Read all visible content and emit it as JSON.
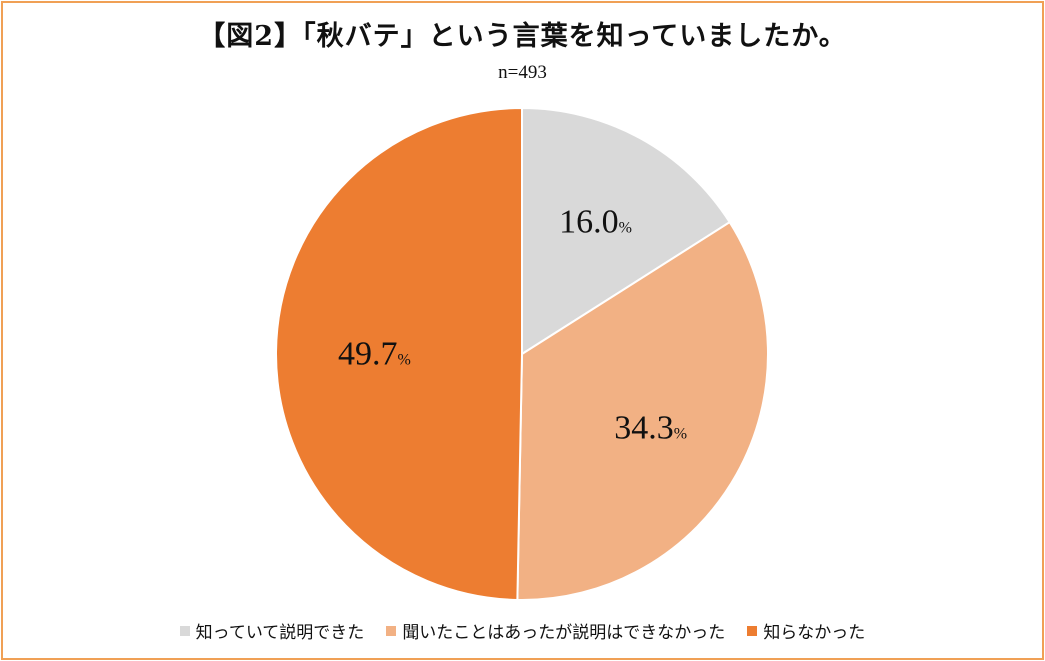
{
  "chart_data": {
    "type": "pie",
    "title": "【図2】「秋バテ」という言葉を知っていましたか。",
    "subtitle": "n=493",
    "unit_suffix": "%",
    "slices": [
      {
        "label": "知っていて説明できた",
        "value": 16.0,
        "value_text": "16.0",
        "color": "#D9D9D9"
      },
      {
        "label": "聞いたことはあったが説明はできなかった",
        "value": 34.3,
        "value_text": "34.3",
        "color": "#F2B184"
      },
      {
        "label": "知らなかった",
        "value": 49.7,
        "value_text": "49.7",
        "color": "#ED7D31"
      }
    ],
    "start_angle": "12 o'clock",
    "direction": "clockwise",
    "legend_position": "bottom"
  },
  "colors": {
    "frame_border": "#F0A055",
    "slice_separator": "#ffffff"
  }
}
